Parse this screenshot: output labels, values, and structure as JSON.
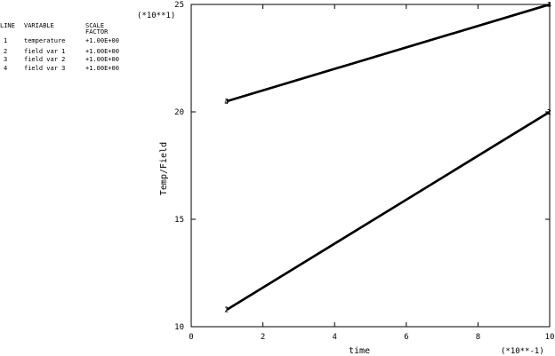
{
  "legend": {
    "headers": {
      "line": "LINE",
      "variable": "VARIABLE",
      "scale_1": "SCALE",
      "scale_2": "FACTOR"
    },
    "rows": [
      {
        "line": "1",
        "variable": "temperature",
        "factor": "+1.00E+00"
      },
      {
        "line": "2",
        "variable": "field var 1",
        "factor": "+1.00E+00"
      },
      {
        "line": "3",
        "variable": "field var 2",
        "factor": "+1.00E+00"
      },
      {
        "line": "4",
        "variable": "field var 3",
        "factor": "+1.00E+00"
      }
    ]
  },
  "chart_data": {
    "type": "line",
    "xlabel": "time",
    "ylabel": "Temp/Field",
    "x_multiplier": "(*10**-1)",
    "y_multiplier": "(*10**1)",
    "xlim": [
      0,
      10
    ],
    "ylim": [
      10,
      25
    ],
    "x_ticks": [
      "0",
      "2",
      "4",
      "6",
      "8",
      "10"
    ],
    "y_ticks": [
      "10",
      "15",
      "20",
      "25"
    ],
    "grid": false,
    "line_color": "#000000",
    "series": [
      {
        "name": "1",
        "x": [
          1,
          10
        ],
        "y": [
          10.8,
          20
        ]
      },
      {
        "name": "2",
        "x": [
          1,
          10
        ],
        "y": [
          10.8,
          20
        ]
      },
      {
        "name": "3",
        "x": [
          1,
          10
        ],
        "y": [
          20.5,
          25
        ]
      },
      {
        "name": "4",
        "x": [
          1,
          10
        ],
        "y": [
          20.5,
          25
        ]
      }
    ]
  }
}
